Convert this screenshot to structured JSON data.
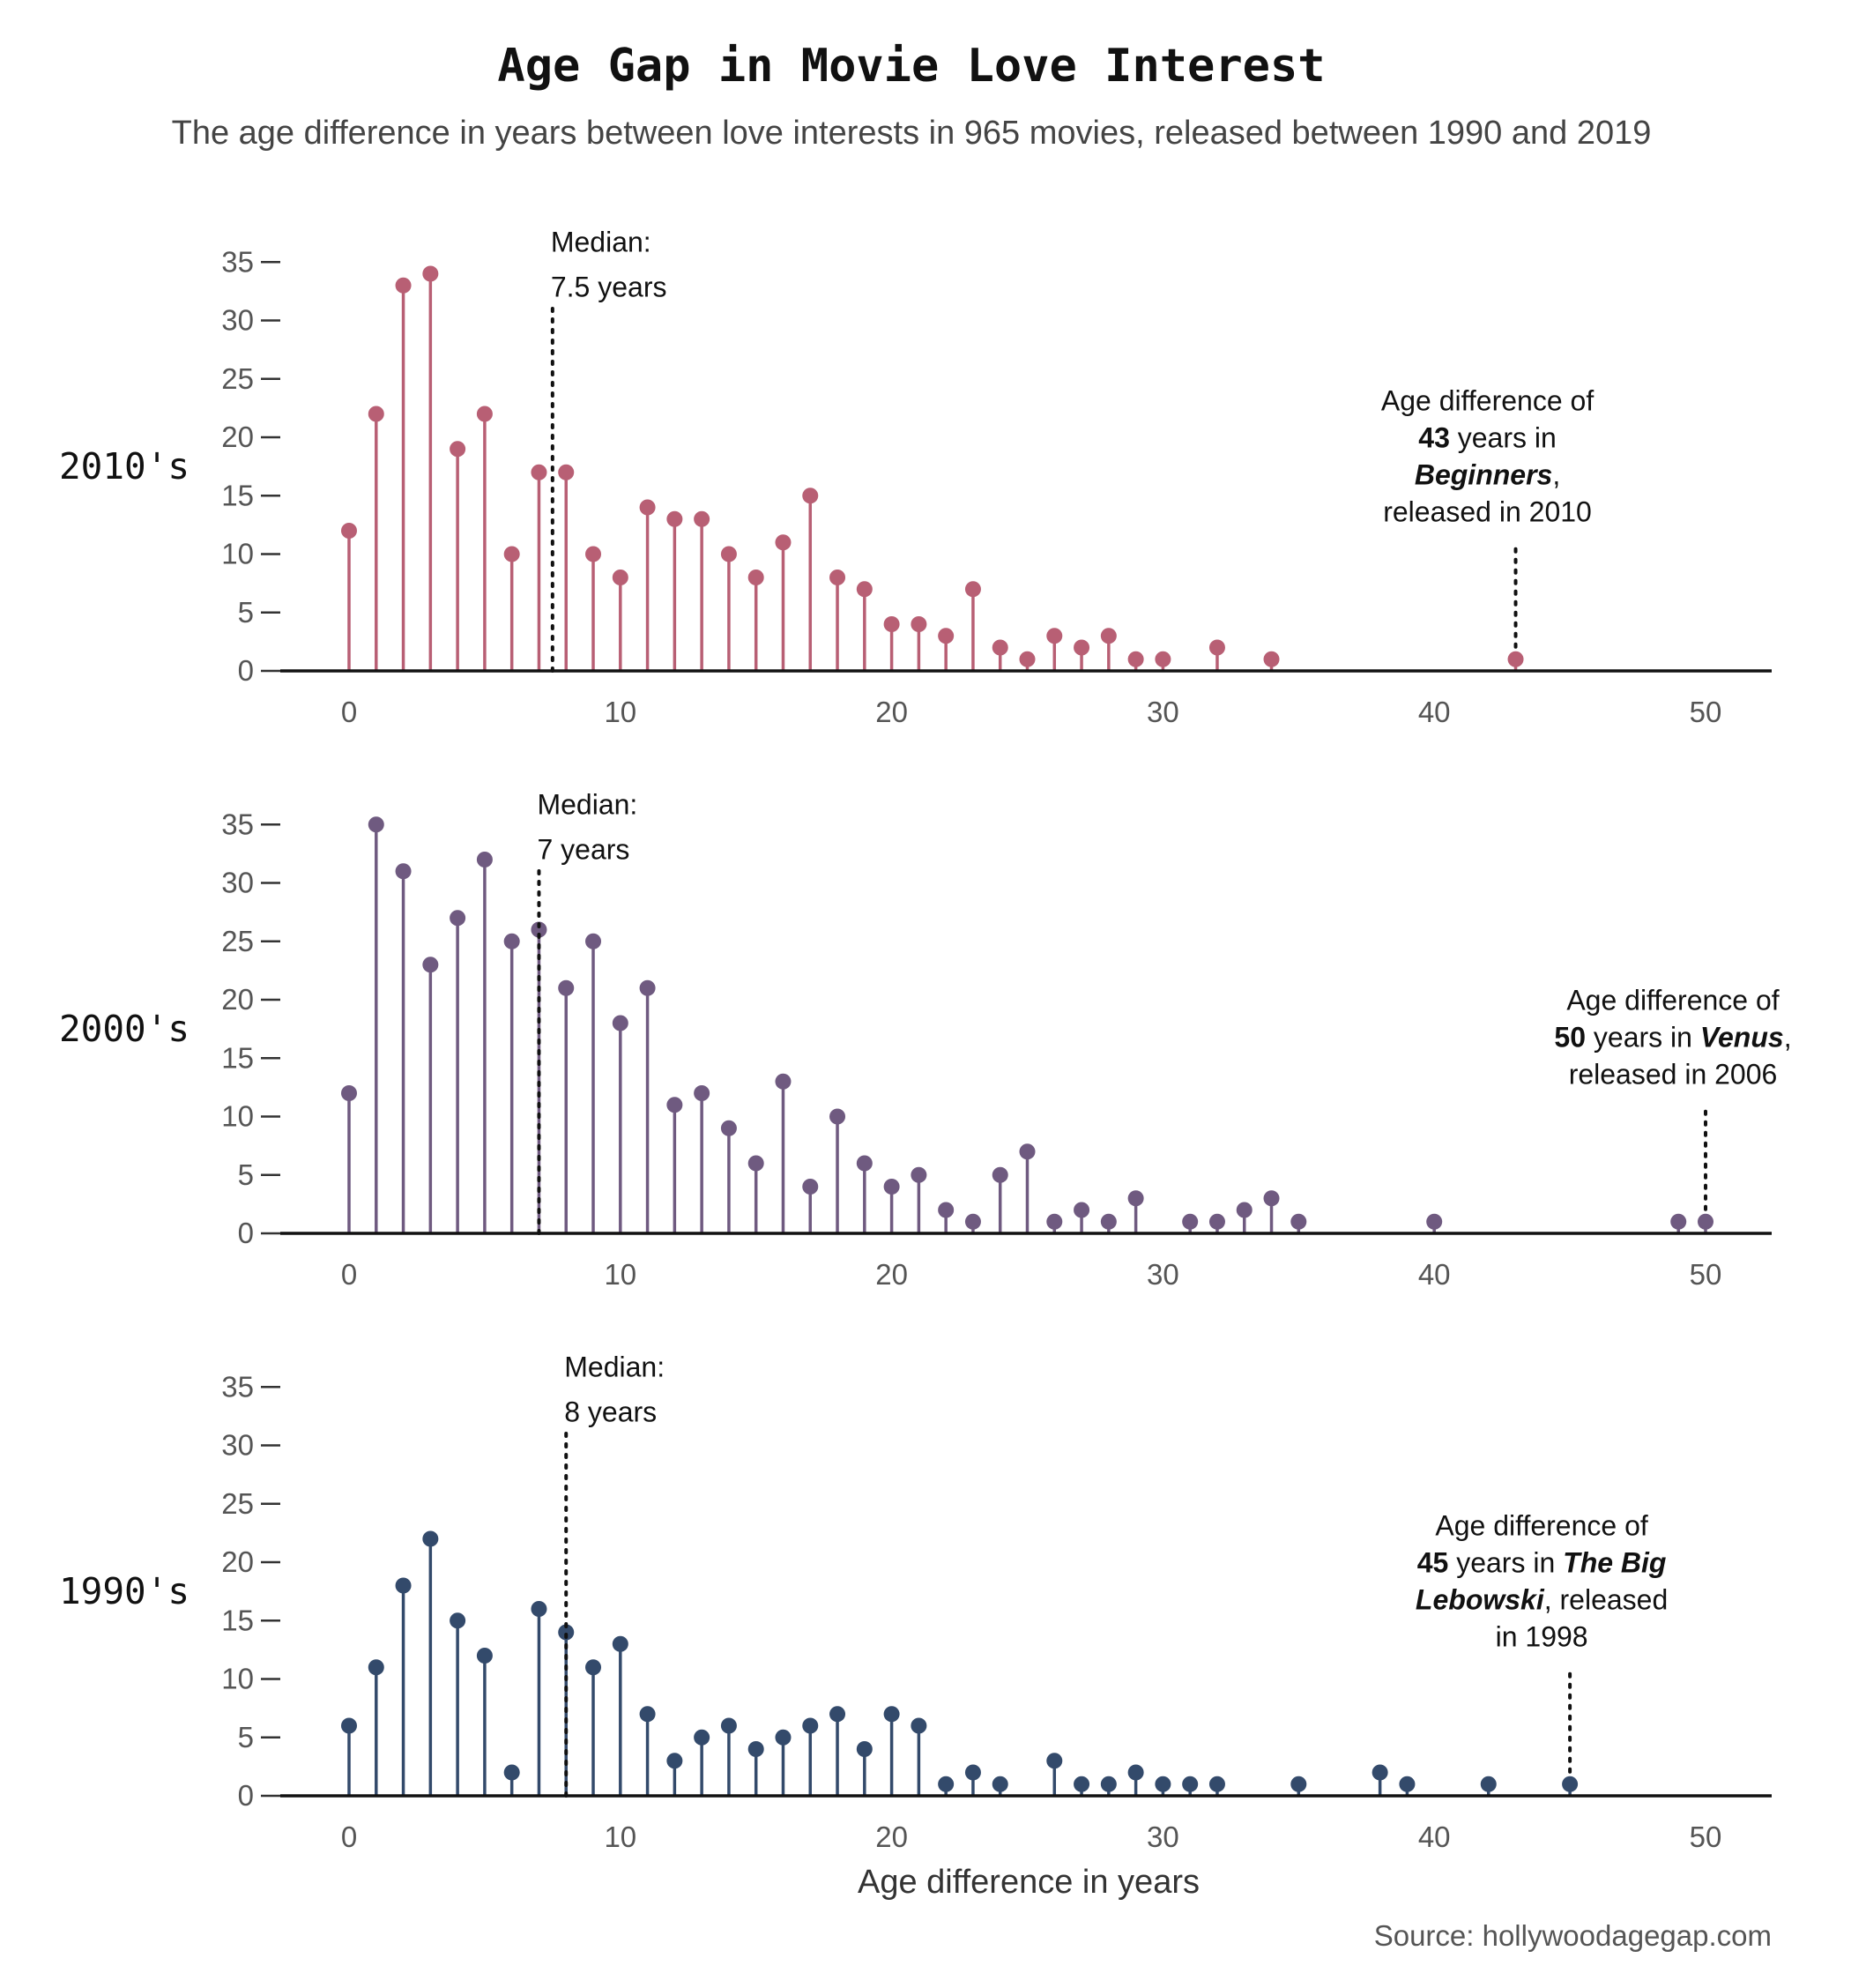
{
  "title": "Age Gap in Movie Love Interest",
  "subtitle": "The age difference in years between love interests in 965 movies, released between 1990 and 2019",
  "source": "Source: hollywoodagegap.com",
  "chart_data": {
    "type": "lollipop",
    "xlabel": "Age difference in years",
    "xlim": [
      0,
      50
    ],
    "ylim": [
      0,
      35
    ],
    "xticks": [
      0,
      10,
      20,
      30,
      40,
      50
    ],
    "yticks": [
      0,
      5,
      10,
      15,
      20,
      25,
      30,
      35
    ],
    "grid": false,
    "panels": [
      {
        "name": "2010's",
        "color": "#b85f74",
        "median": 7.5,
        "median_text": [
          "Median:",
          "7.5 years"
        ],
        "outlier_x": 43,
        "outlier_text": [
          [
            {
              "t": "Age difference of"
            }
          ],
          [
            {
              "t": "43",
              "b": true
            },
            {
              "t": " years in"
            }
          ],
          [
            {
              "t": "Beginners",
              "b": true,
              "i": true
            },
            {
              "t": ","
            }
          ],
          [
            {
              "t": "released in 2010"
            }
          ]
        ],
        "x": [
          0,
          1,
          2,
          3,
          4,
          5,
          6,
          7,
          8,
          9,
          10,
          11,
          12,
          13,
          14,
          15,
          16,
          17,
          18,
          19,
          20,
          21,
          22,
          23,
          24,
          25,
          26,
          27,
          28,
          29,
          30,
          32,
          34,
          43
        ],
        "y": [
          12,
          22,
          33,
          34,
          19,
          22,
          10,
          17,
          17,
          10,
          8,
          14,
          13,
          13,
          10,
          8,
          11,
          15,
          8,
          7,
          4,
          4,
          3,
          7,
          2,
          1,
          3,
          2,
          3,
          1,
          1,
          2,
          1,
          1
        ]
      },
      {
        "name": "2000's",
        "color": "#6f5a80",
        "median": 7,
        "median_text": [
          "Median:",
          "7 years"
        ],
        "outlier_x": 50,
        "outlier_text": [
          [
            {
              "t": "Age difference of"
            }
          ],
          [
            {
              "t": "50",
              "b": true
            },
            {
              "t": " years in "
            },
            {
              "t": "Venus",
              "b": true,
              "i": true
            },
            {
              "t": ","
            }
          ],
          [
            {
              "t": "released in 2006"
            }
          ]
        ],
        "x": [
          0,
          1,
          2,
          3,
          4,
          5,
          6,
          7,
          8,
          9,
          10,
          11,
          12,
          13,
          14,
          15,
          16,
          17,
          18,
          19,
          20,
          21,
          22,
          23,
          24,
          25,
          26,
          27,
          28,
          29,
          31,
          32,
          33,
          34,
          35,
          40,
          49,
          50
        ],
        "y": [
          12,
          35,
          31,
          23,
          27,
          32,
          25,
          26,
          21,
          25,
          18,
          21,
          11,
          12,
          9,
          6,
          13,
          4,
          10,
          6,
          4,
          5,
          2,
          1,
          5,
          7,
          1,
          2,
          1,
          3,
          1,
          1,
          2,
          3,
          1,
          1,
          1,
          1
        ]
      },
      {
        "name": "1990's",
        "color": "#334a6b",
        "median": 8,
        "median_text": [
          "Median:",
          "8 years"
        ],
        "outlier_x": 45,
        "outlier_text": [
          [
            {
              "t": "Age difference of"
            }
          ],
          [
            {
              "t": "45",
              "b": true
            },
            {
              "t": " years in "
            },
            {
              "t": "The Big",
              "b": true,
              "i": true
            }
          ],
          [
            {
              "t": "Lebowski",
              "b": true,
              "i": true
            },
            {
              "t": ", released"
            }
          ],
          [
            {
              "t": "in 1998"
            }
          ]
        ],
        "x": [
          0,
          1,
          2,
          3,
          4,
          5,
          6,
          7,
          8,
          9,
          10,
          11,
          12,
          13,
          14,
          15,
          16,
          17,
          18,
          19,
          20,
          21,
          22,
          23,
          24,
          26,
          27,
          28,
          29,
          30,
          31,
          32,
          35,
          38,
          39,
          42,
          45
        ],
        "y": [
          6,
          11,
          18,
          22,
          15,
          12,
          2,
          16,
          14,
          11,
          13,
          7,
          3,
          5,
          6,
          4,
          5,
          6,
          7,
          4,
          7,
          6,
          1,
          2,
          1,
          3,
          1,
          1,
          2,
          1,
          1,
          1,
          1,
          2,
          1,
          1,
          1
        ]
      }
    ]
  }
}
